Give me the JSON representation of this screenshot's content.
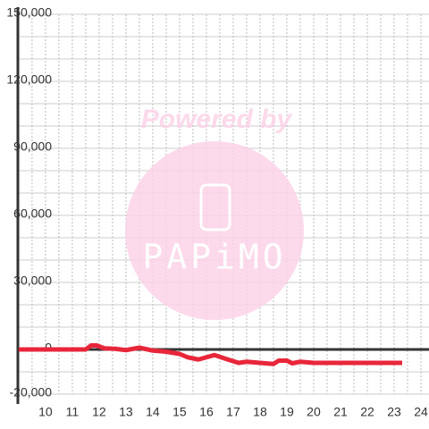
{
  "chart_data": {
    "type": "line",
    "watermark": {
      "title": "Powered by",
      "logo": "PAPiMO"
    },
    "x": [
      9,
      11.5,
      11.7,
      11.9,
      12.2,
      12.6,
      13,
      13.5,
      14,
      14.5,
      15,
      15.3,
      15.7,
      16,
      16.3,
      16.8,
      17.2,
      17.5,
      18,
      18.5,
      18.7,
      19,
      19.2,
      19.5,
      20,
      21,
      22,
      23.3
    ],
    "series": [
      {
        "color": "#e8263a",
        "values": [
          0,
          0,
          1800,
          1800,
          500,
          300,
          -300,
          800,
          -500,
          -1000,
          -2000,
          -3500,
          -4500,
          -3500,
          -2500,
          -4500,
          -6000,
          -5500,
          -6000,
          -6500,
          -5000,
          -5000,
          -6200,
          -5500,
          -6000,
          -6000,
          -6000,
          -6000
        ]
      }
    ],
    "xlim": [
      8.97,
      24.3
    ],
    "xticks": [
      10,
      11,
      12,
      13,
      14,
      15,
      16,
      17,
      18,
      19,
      20,
      21,
      22,
      23,
      24
    ],
    "xminorticks": [
      9.5,
      10.5,
      11.5,
      12.5,
      13.5,
      14.5,
      15.5,
      16.5,
      17.5,
      18.5,
      19.5,
      20.5,
      21.5,
      22.5,
      23.5
    ],
    "ylim": [
      -20000,
      150000
    ],
    "yticks": [
      {
        "value": -20000,
        "label": "-20,000"
      },
      0,
      {
        "value": 30000,
        "label": "30,000"
      },
      {
        "value": 60000,
        "label": "60,000"
      },
      {
        "value": 90000,
        "label": "90,000"
      },
      {
        "value": 120000,
        "label": "120,000"
      },
      {
        "value": 150000,
        "label": "150,000"
      }
    ],
    "yminorticks": [
      -10000,
      10000,
      20000,
      40000,
      50000,
      70000,
      80000,
      100000,
      110000,
      130000,
      140000
    ],
    "grid": true
  }
}
